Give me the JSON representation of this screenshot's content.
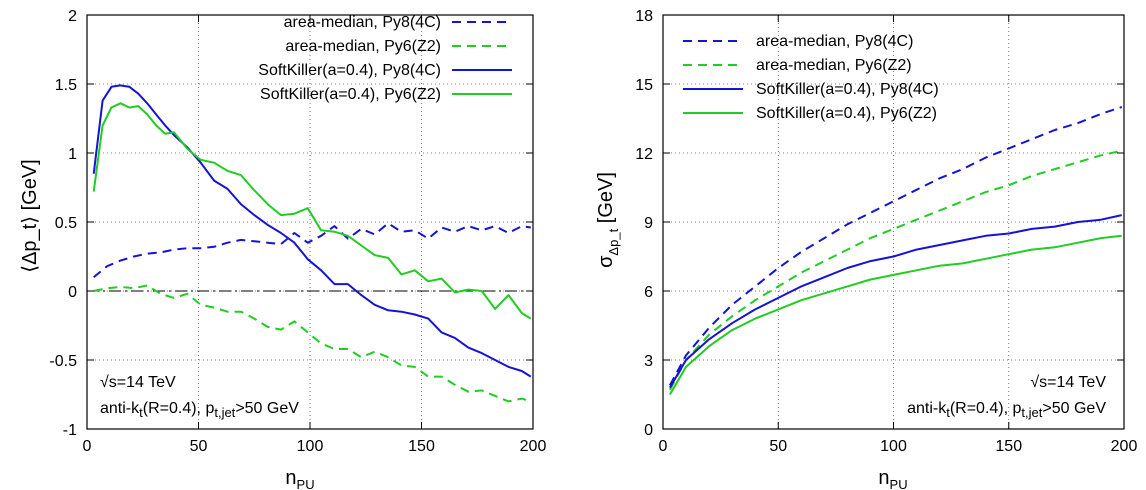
{
  "chart_data": [
    {
      "type": "line",
      "xlabel": "n",
      "xlabel_sub": "PU",
      "ylabel": "⟨Δp_t⟩ [GeV]",
      "xlim": [
        0,
        200
      ],
      "ylim": [
        -1,
        2
      ],
      "xticks": [
        0,
        50,
        100,
        150,
        200
      ],
      "yticks": [
        -1,
        -0.5,
        0,
        0.5,
        1,
        1.5,
        2
      ],
      "ytick_labels": [
        "-1",
        "-0.5",
        "0",
        "0.5",
        "1",
        "1.5",
        "2"
      ],
      "grid": true,
      "zero_line": true,
      "legend_position": "top-right",
      "annotations": {
        "energy": "√s=14 TeV",
        "jet_pre": "anti-k",
        "jet_t": "t",
        "jet_mid": "(R=0.4), p",
        "jet_sub": "t,jet",
        "jet_post": ">50 GeV"
      },
      "series": [
        {
          "name": "area-median, Py8(4C)",
          "color": "#1414d2",
          "dash": "dashed",
          "x": [
            3,
            9,
            15,
            21,
            27,
            33,
            39,
            45,
            51,
            57,
            63,
            69,
            75,
            81,
            87,
            93,
            99,
            105,
            111,
            117,
            123,
            129,
            135,
            141,
            147,
            153,
            159,
            165,
            171,
            177,
            183,
            189,
            195,
            199
          ],
          "y": [
            0.1,
            0.18,
            0.22,
            0.25,
            0.27,
            0.28,
            0.3,
            0.31,
            0.31,
            0.32,
            0.35,
            0.37,
            0.36,
            0.35,
            0.34,
            0.42,
            0.35,
            0.4,
            0.47,
            0.38,
            0.45,
            0.41,
            0.49,
            0.43,
            0.44,
            0.38,
            0.46,
            0.43,
            0.47,
            0.44,
            0.47,
            0.42,
            0.47,
            0.46
          ]
        },
        {
          "name": "area-median, Py6(Z2)",
          "color": "#22cc22",
          "dash": "dashed",
          "x": [
            3,
            9,
            15,
            21,
            27,
            33,
            39,
            45,
            51,
            57,
            63,
            69,
            75,
            81,
            87,
            93,
            99,
            105,
            111,
            117,
            123,
            129,
            135,
            141,
            147,
            153,
            159,
            165,
            171,
            177,
            183,
            189,
            195,
            199
          ],
          "y": [
            0.0,
            0.02,
            0.03,
            0.02,
            0.04,
            -0.02,
            -0.05,
            -0.02,
            -0.1,
            -0.12,
            -0.15,
            -0.15,
            -0.2,
            -0.26,
            -0.28,
            -0.22,
            -0.3,
            -0.38,
            -0.42,
            -0.42,
            -0.48,
            -0.44,
            -0.48,
            -0.54,
            -0.55,
            -0.62,
            -0.62,
            -0.68,
            -0.73,
            -0.72,
            -0.76,
            -0.8,
            -0.78,
            -0.8
          ]
        },
        {
          "name": "SoftKiller(a=0.4), Py8(4C)",
          "color": "#1414d2",
          "dash": "solid",
          "x": [
            3,
            7,
            11,
            15,
            19,
            23,
            27,
            31,
            35,
            39,
            45,
            51,
            57,
            63,
            69,
            75,
            81,
            87,
            93,
            99,
            105,
            111,
            117,
            123,
            129,
            135,
            141,
            147,
            153,
            159,
            165,
            171,
            177,
            183,
            189,
            195,
            199
          ],
          "y": [
            0.85,
            1.38,
            1.48,
            1.49,
            1.48,
            1.43,
            1.36,
            1.28,
            1.2,
            1.13,
            1.04,
            0.93,
            0.8,
            0.74,
            0.63,
            0.55,
            0.48,
            0.42,
            0.35,
            0.23,
            0.15,
            0.05,
            0.05,
            -0.03,
            -0.1,
            -0.14,
            -0.15,
            -0.17,
            -0.2,
            -0.3,
            -0.34,
            -0.41,
            -0.45,
            -0.5,
            -0.55,
            -0.58,
            -0.62
          ]
        },
        {
          "name": "SoftKiller(a=0.4), Py6(Z2)",
          "color": "#22cc22",
          "dash": "solid",
          "x": [
            3,
            7,
            11,
            15,
            19,
            23,
            27,
            31,
            35,
            39,
            45,
            51,
            57,
            63,
            69,
            75,
            81,
            87,
            93,
            99,
            105,
            111,
            117,
            123,
            129,
            135,
            141,
            147,
            153,
            159,
            165,
            171,
            177,
            183,
            189,
            195,
            199
          ],
          "y": [
            0.72,
            1.2,
            1.33,
            1.36,
            1.33,
            1.34,
            1.28,
            1.2,
            1.14,
            1.15,
            1.03,
            0.95,
            0.93,
            0.87,
            0.84,
            0.73,
            0.63,
            0.55,
            0.56,
            0.6,
            0.44,
            0.43,
            0.4,
            0.33,
            0.26,
            0.24,
            0.12,
            0.15,
            0.07,
            0.09,
            -0.01,
            0.01,
            0.0,
            -0.13,
            -0.03,
            -0.16,
            -0.2
          ]
        }
      ]
    },
    {
      "type": "line",
      "xlabel": "n",
      "xlabel_sub": "PU",
      "ylabel": "σ",
      "ylabel_sub": "Δp_t",
      "ylabel_post": " [GeV]",
      "xlim": [
        0,
        200
      ],
      "ylim": [
        0,
        18
      ],
      "xticks": [
        0,
        50,
        100,
        150,
        200
      ],
      "yticks": [
        0,
        3,
        6,
        9,
        12,
        15,
        18
      ],
      "ytick_labels": [
        "0",
        "3",
        "6",
        "9",
        "12",
        "15",
        "18"
      ],
      "grid": true,
      "zero_line": false,
      "legend_position": "top-left",
      "annotations": {
        "energy": "√s=14 TeV",
        "jet_pre": "anti-k",
        "jet_t": "t",
        "jet_mid": "(R=0.4), p",
        "jet_sub": "t,jet",
        "jet_post": ">50 GeV"
      },
      "series": [
        {
          "name": "area-median, Py8(4C)",
          "color": "#1414d2",
          "dash": "dashed",
          "x": [
            3,
            10,
            20,
            30,
            40,
            50,
            60,
            70,
            80,
            90,
            100,
            110,
            120,
            130,
            140,
            150,
            160,
            170,
            180,
            190,
            199
          ],
          "y": [
            1.9,
            3.2,
            4.4,
            5.4,
            6.2,
            7.0,
            7.7,
            8.3,
            8.9,
            9.4,
            9.9,
            10.4,
            10.9,
            11.3,
            11.8,
            12.2,
            12.6,
            13.0,
            13.3,
            13.7,
            14.0
          ]
        },
        {
          "name": "area-median, Py6(Z2)",
          "color": "#22cc22",
          "dash": "dashed",
          "x": [
            3,
            10,
            20,
            30,
            40,
            50,
            60,
            70,
            80,
            90,
            100,
            110,
            120,
            130,
            140,
            150,
            160,
            170,
            180,
            190,
            199
          ],
          "y": [
            1.7,
            3.0,
            4.1,
            4.9,
            5.6,
            6.2,
            6.8,
            7.3,
            7.8,
            8.3,
            8.7,
            9.1,
            9.5,
            9.9,
            10.3,
            10.6,
            11.0,
            11.3,
            11.6,
            11.9,
            12.1
          ]
        },
        {
          "name": "SoftKiller(a=0.4), Py8(4C)",
          "color": "#1414d2",
          "dash": "solid",
          "x": [
            3,
            10,
            20,
            30,
            40,
            50,
            60,
            70,
            80,
            90,
            100,
            110,
            120,
            130,
            140,
            150,
            160,
            170,
            180,
            190,
            199
          ],
          "y": [
            1.8,
            3.0,
            3.9,
            4.6,
            5.2,
            5.7,
            6.2,
            6.6,
            7.0,
            7.3,
            7.5,
            7.8,
            8.0,
            8.2,
            8.4,
            8.5,
            8.7,
            8.8,
            9.0,
            9.1,
            9.3
          ]
        },
        {
          "name": "SoftKiller(a=0.4), Py6(Z2)",
          "color": "#22cc22",
          "dash": "solid",
          "x": [
            3,
            10,
            20,
            30,
            40,
            50,
            60,
            70,
            80,
            90,
            100,
            110,
            120,
            130,
            140,
            150,
            160,
            170,
            180,
            190,
            199
          ],
          "y": [
            1.5,
            2.7,
            3.6,
            4.3,
            4.8,
            5.2,
            5.6,
            5.9,
            6.2,
            6.5,
            6.7,
            6.9,
            7.1,
            7.2,
            7.4,
            7.6,
            7.8,
            7.9,
            8.1,
            8.3,
            8.4
          ]
        }
      ]
    }
  ]
}
